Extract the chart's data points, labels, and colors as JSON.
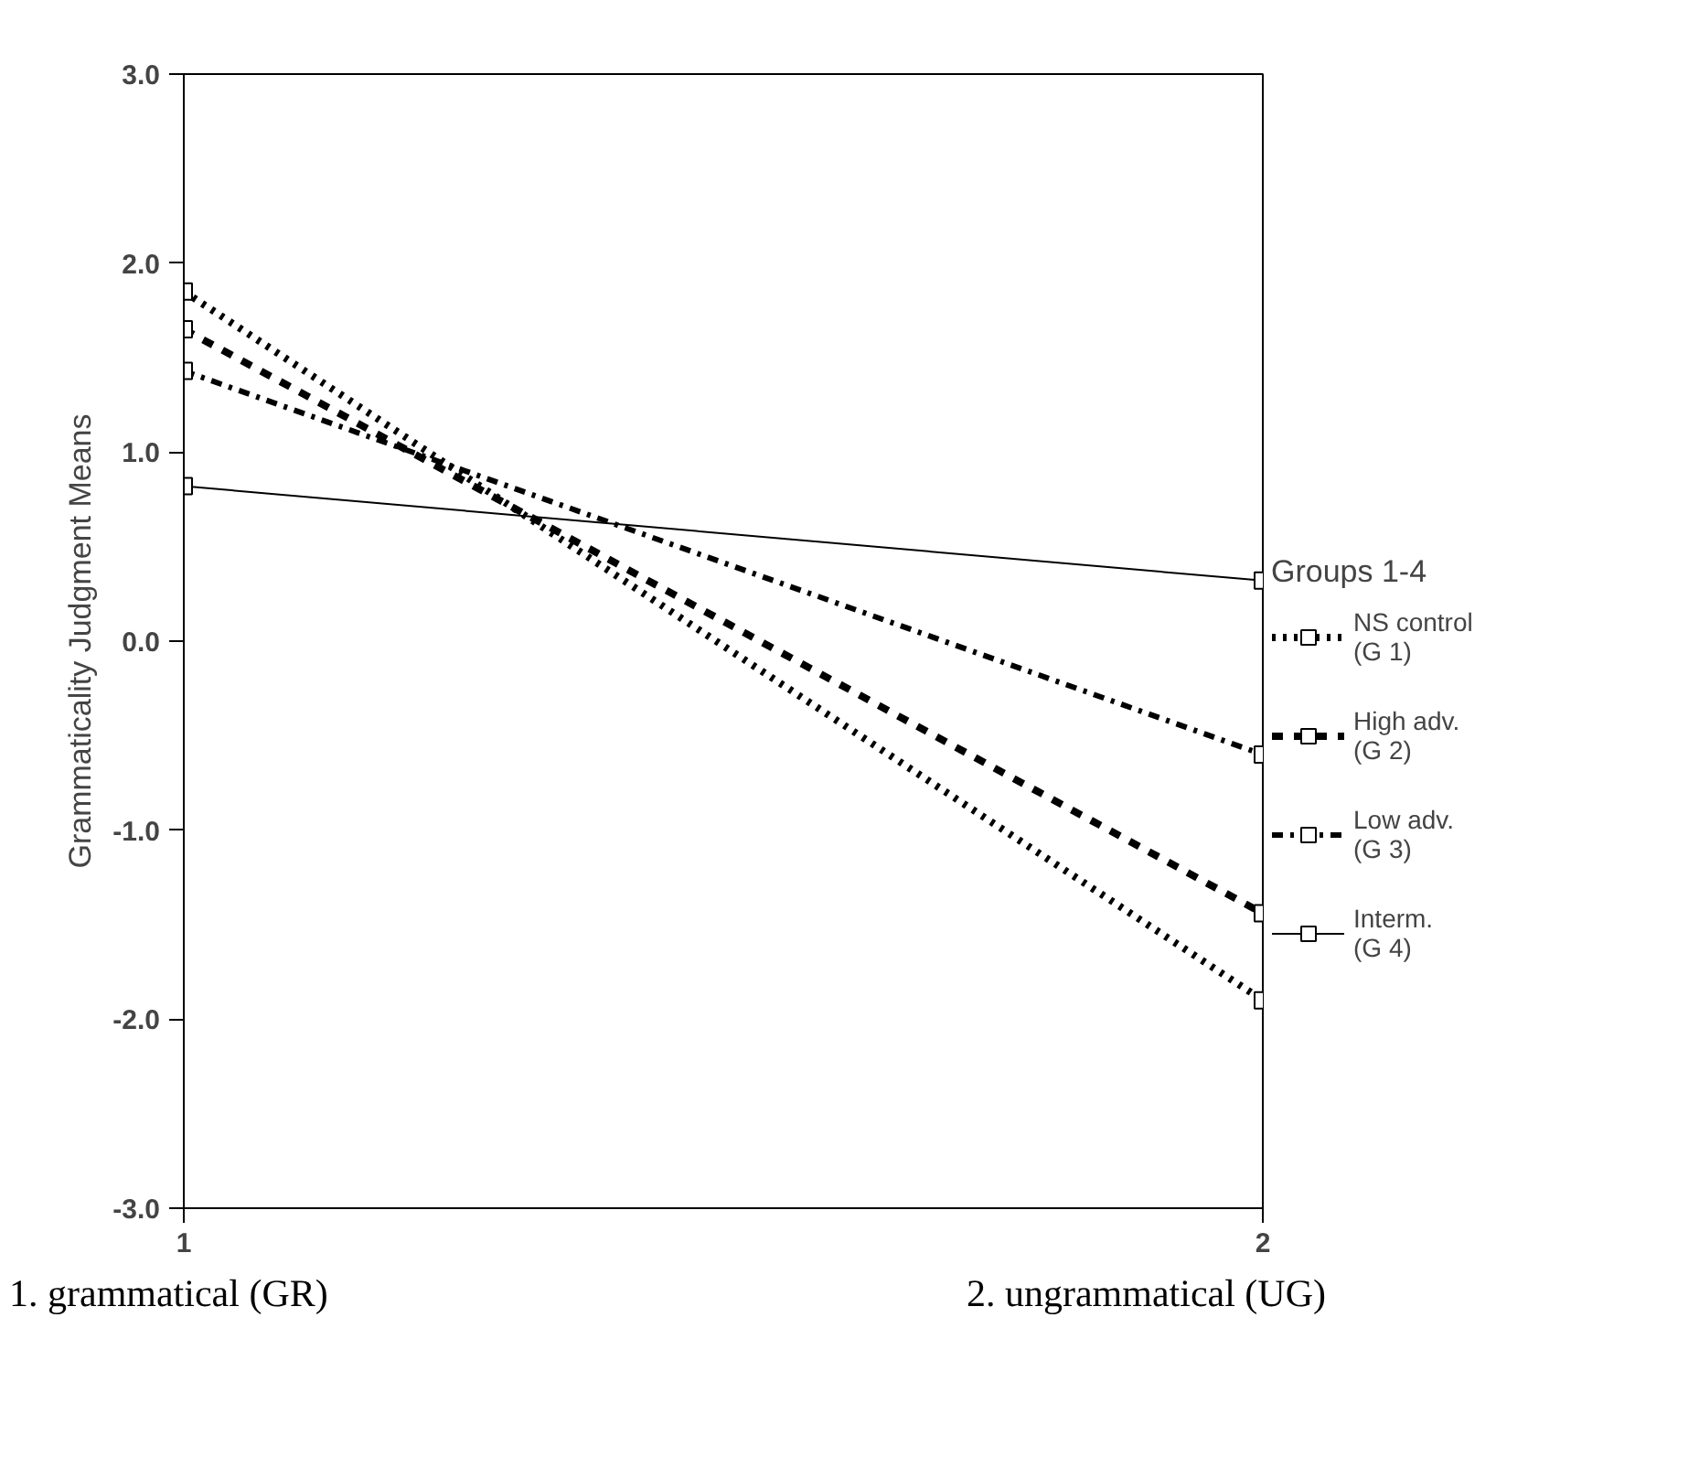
{
  "chart_data": {
    "type": "line",
    "ylabel": "Grammaticality Judgment Means",
    "legend_title": "Groups 1-4",
    "x": [
      1,
      2
    ],
    "xlim": [
      1,
      2
    ],
    "xticks": [
      1,
      2
    ],
    "ylim": [
      -3,
      3
    ],
    "yticks": [
      {
        "value": -3,
        "label": "-3.0"
      },
      {
        "value": -2,
        "label": "-2.0"
      },
      {
        "value": -1,
        "label": "-1.0"
      },
      {
        "value": 0,
        "label": "0.0"
      },
      {
        "value": 1,
        "label": "1.0"
      },
      {
        "value": 2,
        "label": "2.0"
      },
      {
        "value": 3,
        "label": "3.0"
      }
    ],
    "grid": false,
    "legend": "right",
    "marker": "square",
    "series": [
      {
        "name": "NS control\n(G 1)",
        "color": "#000000",
        "line_style": "dotted",
        "values": [
          1.85,
          -1.9
        ]
      },
      {
        "name": "High adv.\n(G 2)",
        "color": "#000000",
        "line_style": "dashed",
        "values": [
          1.65,
          -1.44
        ]
      },
      {
        "name": "Low adv.\n(G 3)",
        "color": "#000000",
        "line_style": "dashdot",
        "values": [
          1.43,
          -0.6
        ]
      },
      {
        "name": "Interm.\n(G 4)",
        "color": "#000000",
        "line_style": "solid",
        "values": [
          0.82,
          0.32
        ]
      }
    ],
    "annotations": [
      "1. grammatical (GR)",
      "2. ungrammatical (UG)"
    ]
  }
}
